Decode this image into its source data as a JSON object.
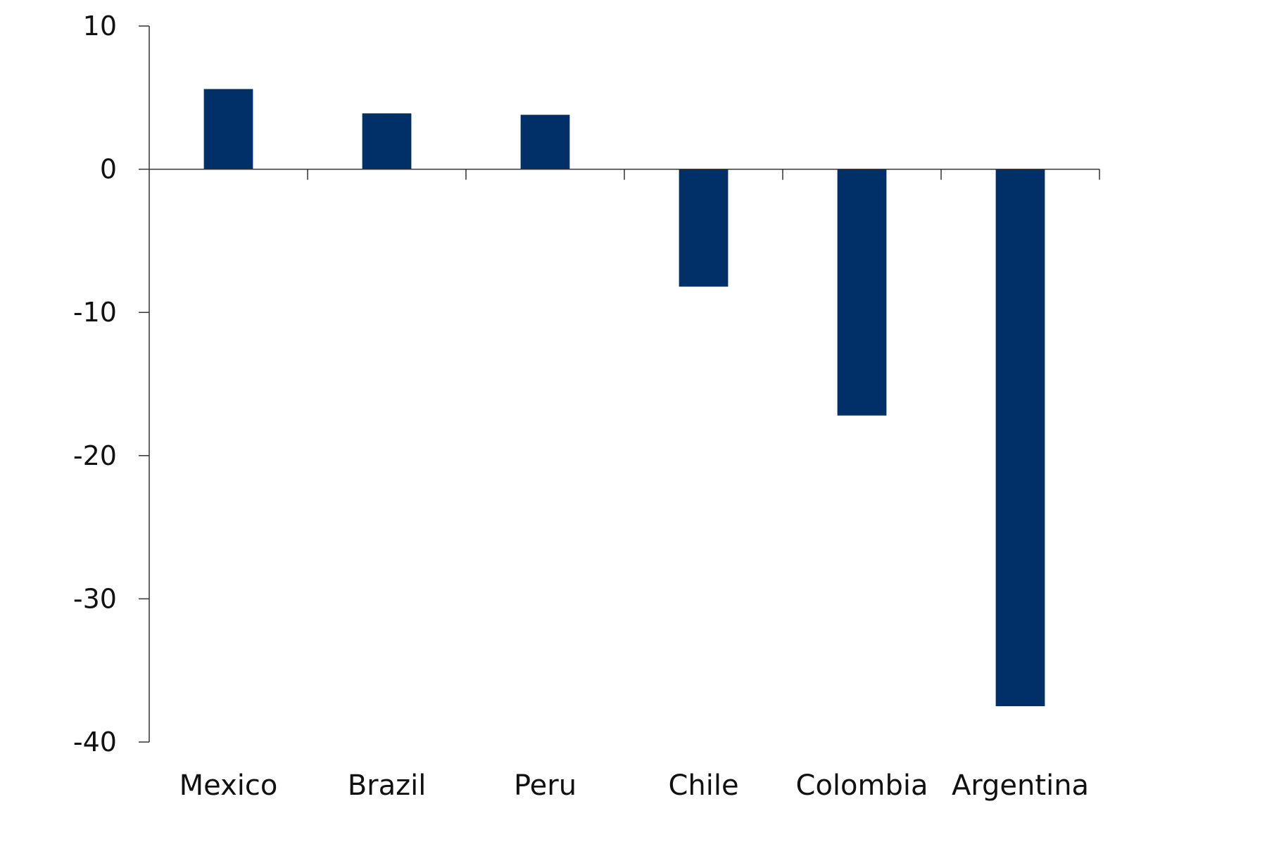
{
  "chart_data": {
    "type": "bar",
    "title": "",
    "xlabel": "",
    "ylabel": "",
    "categories": [
      "Mexico",
      "Brazil",
      "Peru",
      "Chile",
      "Colombia",
      "Argentina"
    ],
    "series": [
      {
        "values": [
          5.6,
          3.9,
          3.8,
          -8.2,
          -17.2,
          -37.5
        ]
      }
    ],
    "ylim": [
      -40,
      10
    ],
    "yticks": [
      10,
      0,
      -10,
      -20,
      -30,
      -40
    ],
    "ytick_labels": [
      "10",
      "0",
      "-10",
      "-20",
      "-30",
      "-40"
    ],
    "grid": false,
    "legend": "none",
    "colors": {
      "bar": "#003067",
      "axis": "#333333"
    }
  }
}
